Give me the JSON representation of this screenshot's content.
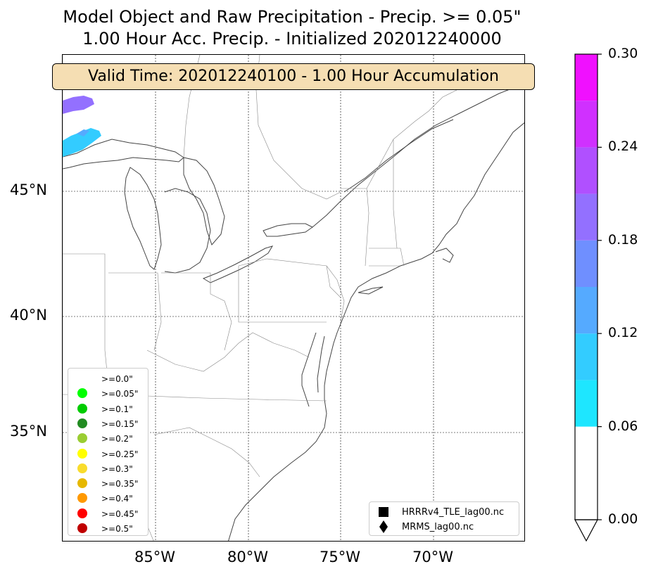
{
  "title": {
    "line1": "Model Object and Raw Precipitation - Precip. >= 0.05\"",
    "line2": "1.00 Hour Acc. Precip. - Initialized 202012240000"
  },
  "valid_time": "Valid Time: 202012240100 - 1.00 Hour Accumulation",
  "map": {
    "region": "Eastern United States",
    "projection": "lat-lon with parallels and meridians",
    "gridlines": "dotted",
    "lat_labels": [
      "45°N",
      "40°N",
      "35°N"
    ],
    "lon_labels": [
      "85°W",
      "80°W",
      "75°W",
      "70°W"
    ],
    "precip_color": "#33ccff",
    "precip_color_high": "#9966ff"
  },
  "threshold_legend": {
    "items": [
      {
        "label": ">=0.0\"",
        "color": "#ffffff"
      },
      {
        "label": ">=0.05\"",
        "color": "#00ff00"
      },
      {
        "label": ">=0.1\"",
        "color": "#00cc00"
      },
      {
        "label": ">=0.15\"",
        "color": "#228b22"
      },
      {
        "label": ">=0.2\"",
        "color": "#9acd32"
      },
      {
        "label": ">=0.25\"",
        "color": "#ffff00"
      },
      {
        "label": ">=0.3\"",
        "color": "#f9dc2c"
      },
      {
        "label": ">=0.35\"",
        "color": "#e6b800"
      },
      {
        "label": ">=0.4\"",
        "color": "#ff9900"
      },
      {
        "label": ">=0.45\"",
        "color": "#ff0000"
      },
      {
        "label": ">=0.5\"",
        "color": "#c00000"
      }
    ]
  },
  "source_legend": {
    "items": [
      {
        "label": "HRRRv4_TLE_lag00.nc",
        "marker": "square-icon"
      },
      {
        "label": "MRMS_lag00.nc",
        "marker": "diamond-icon"
      }
    ]
  },
  "colorbar": {
    "tick_labels": [
      "0.30",
      "0.24",
      "0.18",
      "0.12",
      "0.06",
      "0.00"
    ],
    "tick_values": [
      0.3,
      0.24,
      0.18,
      0.12,
      0.06,
      0.0
    ],
    "segments": [
      {
        "from": 0.0,
        "to": 0.06,
        "color": "#ffffff"
      },
      {
        "from": 0.06,
        "to": 0.09,
        "color": "#1ee6ff"
      },
      {
        "from": 0.09,
        "to": 0.12,
        "color": "#33ccff"
      },
      {
        "from": 0.12,
        "to": 0.15,
        "color": "#55aaff"
      },
      {
        "from": 0.15,
        "to": 0.18,
        "color": "#6f8fff"
      },
      {
        "from": 0.18,
        "to": 0.21,
        "color": "#9370ff"
      },
      {
        "from": 0.21,
        "to": 0.24,
        "color": "#b050ff"
      },
      {
        "from": 0.24,
        "to": 0.27,
        "color": "#d030ff"
      },
      {
        "from": 0.27,
        "to": 0.3,
        "color": "#f010ff"
      }
    ],
    "extend": "min"
  }
}
